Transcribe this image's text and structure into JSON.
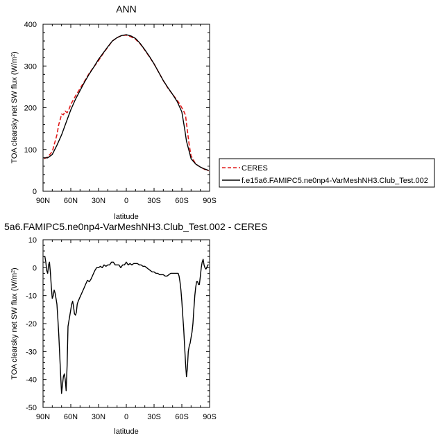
{
  "chart_data": [
    {
      "type": "line",
      "title": "ANN",
      "xlabel": "latitude",
      "ylabel": "TOA clearsky net SW flux (W/m",
      "ylabel_sup": "2",
      "ylabel_end": ")",
      "xlim": [
        90,
        -90
      ],
      "ylim": [
        0,
        400
      ],
      "xticks": [
        90,
        60,
        30,
        0,
        -30,
        -60,
        -90
      ],
      "xtick_labels": [
        "90N",
        "60N",
        "30N",
        "0",
        "30S",
        "60S",
        "90S"
      ],
      "yticks": [
        0,
        100,
        200,
        300,
        400
      ],
      "ytick_labels": [
        "0",
        "100",
        "200",
        "300",
        "400"
      ],
      "legend_position": "right",
      "series": [
        {
          "name": "CERES",
          "color": "#e01a1a",
          "dash": "dashed",
          "x": [
            89,
            85,
            80,
            75,
            73,
            71,
            70,
            68,
            66,
            64,
            62,
            60,
            55,
            50,
            45,
            40,
            35,
            30,
            25,
            20,
            15,
            10,
            5,
            0,
            -5,
            -10,
            -15,
            -20,
            -25,
            -30,
            -35,
            -40,
            -45,
            -50,
            -55,
            -58,
            -60,
            -62,
            -64,
            -66,
            -68,
            -70,
            -75,
            -80,
            -85,
            -89
          ],
          "y": [
            78,
            82,
            95,
            135,
            160,
            175,
            185,
            183,
            192,
            188,
            196,
            208,
            228,
            246,
            264,
            283,
            298,
            313,
            330,
            345,
            360,
            368,
            373,
            374,
            370,
            364,
            353,
            338,
            322,
            305,
            285,
            265,
            247,
            232,
            218,
            208,
            200,
            192,
            182,
            145,
            110,
            85,
            65,
            58,
            52,
            49
          ]
        },
        {
          "name": "f.e15a6.FAMIPC5.ne0np4-VarMeshNH3.Club_Test.002",
          "color": "#000000",
          "dash": "solid",
          "x": [
            89,
            85,
            80,
            75,
            70,
            65,
            60,
            55,
            50,
            45,
            40,
            35,
            30,
            25,
            20,
            15,
            10,
            5,
            0,
            -5,
            -10,
            -15,
            -20,
            -25,
            -30,
            -35,
            -40,
            -45,
            -50,
            -55,
            -60,
            -63,
            -65,
            -68,
            -70,
            -75,
            -80,
            -85,
            -89
          ],
          "y": [
            80,
            80,
            88,
            110,
            135,
            165,
            195,
            220,
            241,
            262,
            281,
            298,
            316,
            331,
            346,
            360,
            368,
            373,
            375,
            372,
            366,
            354,
            339,
            323,
            305,
            285,
            265,
            248,
            232,
            215,
            190,
            150,
            120,
            95,
            78,
            65,
            58,
            53,
            50
          ]
        }
      ]
    },
    {
      "type": "line",
      "title": "5a6.FAMIPC5.ne0np4-VarMeshNH3.Club_Test.002 - CERES",
      "xlabel": "latitude",
      "ylabel": "TOA clearsky net SW flux (W/m",
      "ylabel_sup": "2",
      "ylabel_end": ")",
      "xlim": [
        90,
        -90
      ],
      "ylim": [
        -50,
        10
      ],
      "xticks": [
        90,
        60,
        30,
        0,
        -30,
        -60,
        -90
      ],
      "xtick_labels": [
        "90N",
        "60N",
        "30N",
        "0",
        "30S",
        "60S",
        "90S"
      ],
      "yticks": [
        -50,
        -40,
        -30,
        -20,
        -10,
        0,
        10
      ],
      "ytick_labels": [
        "-50",
        "-40",
        "-30",
        "-20",
        "-10",
        "0",
        "10"
      ],
      "series": [
        {
          "color": "#000000",
          "dash": "solid",
          "x": [
            89,
            88,
            87,
            86,
            85,
            84,
            83,
            82,
            81,
            80,
            79,
            78,
            77,
            76,
            75,
            74,
            73,
            72,
            71,
            70,
            69,
            68,
            67,
            66,
            65,
            64,
            63,
            62,
            61,
            60,
            59,
            58,
            57,
            56,
            55,
            54,
            53,
            52,
            50,
            48,
            46,
            44,
            42,
            40,
            38,
            36,
            34,
            32,
            30,
            28,
            26,
            24,
            22,
            20,
            18,
            16,
            14,
            12,
            10,
            8,
            6,
            4,
            2,
            0,
            -2,
            -4,
            -6,
            -8,
            -10,
            -12,
            -14,
            -16,
            -18,
            -20,
            -22,
            -24,
            -26,
            -28,
            -30,
            -32,
            -34,
            -36,
            -38,
            -40,
            -42,
            -44,
            -46,
            -48,
            -50,
            -52,
            -54,
            -56,
            -57,
            -58,
            -59,
            -60,
            -61,
            -62,
            -63,
            -64,
            -65,
            -66,
            -67,
            -68,
            -69,
            -70,
            -71,
            -72,
            -73,
            -74,
            -75,
            -76,
            -77,
            -78,
            -79,
            -80,
            -81,
            -82,
            -83,
            -84,
            -85,
            -86,
            -87,
            -88,
            -89
          ],
          "y": [
            4,
            4,
            2,
            -1,
            -2,
            1,
            2,
            -2,
            -7,
            -11,
            -10,
            -8,
            -9,
            -11,
            -13,
            -18,
            -24,
            -31,
            -38,
            -45,
            -42,
            -39,
            -38,
            -40,
            -44,
            -35,
            -21,
            -19,
            -17,
            -15,
            -13,
            -12,
            -14,
            -16.5,
            -17,
            -16,
            -13,
            -12,
            -10.5,
            -9,
            -7.5,
            -6,
            -4.5,
            -5,
            -4,
            -2.5,
            -1,
            0,
            0,
            0.5,
            0,
            1,
            0.5,
            1,
            1,
            2,
            2,
            1,
            1,
            1,
            0,
            1,
            1,
            2,
            1,
            1.5,
            1,
            1.5,
            1.5,
            1.5,
            1,
            1,
            0.5,
            0.5,
            0,
            -0.5,
            -1,
            -1.5,
            -1.5,
            -2,
            -2,
            -2.5,
            -2.5,
            -2.5,
            -3,
            -3,
            -2.5,
            -2,
            -2,
            -2,
            -2,
            -2,
            -3,
            -5,
            -8,
            -12,
            -17,
            -22,
            -28,
            -34,
            -39,
            -36,
            -30,
            -28,
            -27,
            -25,
            -23,
            -20,
            -15,
            -10,
            -7,
            -5,
            -5,
            -6,
            -6,
            -3,
            0,
            2,
            3,
            1,
            0,
            -0.5,
            0,
            1,
            1
          ]
        }
      ]
    }
  ]
}
